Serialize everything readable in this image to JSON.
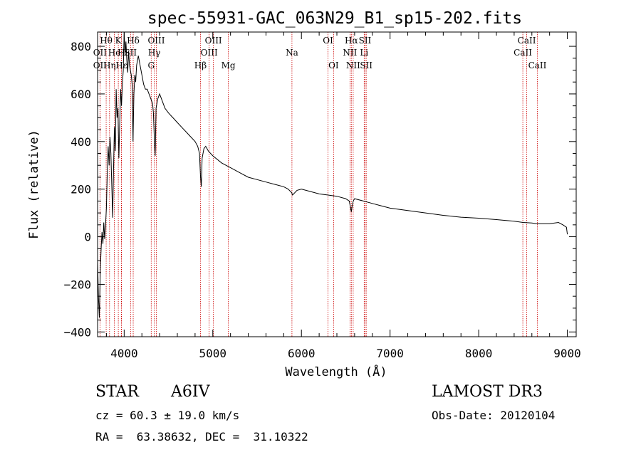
{
  "chart_data": {
    "type": "line",
    "title": "spec-55931-GAC_063N29_B1_sp15-202.fits",
    "xlabel": "Wavelength (Å)",
    "ylabel": "Flux (relative)",
    "xlim": [
      3700,
      9100
    ],
    "ylim": [
      -420,
      860
    ],
    "x_ticks": [
      4000,
      5000,
      6000,
      7000,
      8000,
      9000
    ],
    "y_ticks": [
      -400,
      -200,
      0,
      200,
      400,
      600,
      800
    ],
    "series": [
      {
        "name": "flux",
        "x": [
          3700,
          3710,
          3720,
          3730,
          3740,
          3750,
          3760,
          3770,
          3780,
          3790,
          3800,
          3810,
          3820,
          3830,
          3840,
          3850,
          3860,
          3870,
          3880,
          3890,
          3900,
          3910,
          3920,
          3930,
          3940,
          3950,
          3960,
          3970,
          3980,
          3990,
          4000,
          4010,
          4020,
          4030,
          4040,
          4050,
          4060,
          4070,
          4080,
          4090,
          4100,
          4110,
          4120,
          4130,
          4140,
          4160,
          4180,
          4200,
          4220,
          4240,
          4260,
          4280,
          4300,
          4320,
          4330,
          4340,
          4350,
          4360,
          4380,
          4400,
          4420,
          4440,
          4460,
          4500,
          4550,
          4600,
          4650,
          4700,
          4750,
          4800,
          4830,
          4850,
          4860,
          4870,
          4880,
          4900,
          4920,
          4950,
          5000,
          5100,
          5200,
          5300,
          5400,
          5500,
          5600,
          5700,
          5800,
          5850,
          5890,
          5900,
          5950,
          6000,
          6100,
          6200,
          6300,
          6400,
          6500,
          6540,
          6555,
          6563,
          6570,
          6585,
          6600,
          6700,
          6800,
          6900,
          7000,
          7200,
          7400,
          7600,
          7800,
          8000,
          8200,
          8400,
          8500,
          8600,
          8650,
          8700,
          8800,
          8900,
          8950,
          8990,
          9000
        ],
        "y": [
          -100,
          -250,
          -340,
          -150,
          -50,
          20,
          -30,
          60,
          -10,
          50,
          120,
          280,
          380,
          300,
          420,
          350,
          220,
          80,
          280,
          460,
          360,
          620,
          500,
          540,
          330,
          480,
          620,
          550,
          640,
          700,
          860,
          760,
          820,
          740,
          690,
          780,
          720,
          700,
          680,
          640,
          400,
          600,
          680,
          650,
          720,
          760,
          720,
          680,
          640,
          620,
          620,
          600,
          580,
          560,
          520,
          420,
          340,
          540,
          580,
          600,
          580,
          560,
          540,
          520,
          500,
          480,
          460,
          440,
          420,
          400,
          380,
          350,
          260,
          210,
          330,
          370,
          380,
          360,
          340,
          310,
          290,
          270,
          250,
          240,
          230,
          220,
          210,
          200,
          185,
          175,
          195,
          200,
          190,
          180,
          175,
          170,
          160,
          150,
          120,
          105,
          125,
          150,
          160,
          150,
          140,
          130,
          120,
          110,
          100,
          90,
          82,
          78,
          72,
          65,
          60,
          58,
          55,
          55,
          55,
          60,
          50,
          40,
          10
        ]
      }
    ],
    "line_markers": [
      {
        "label": "Hθ",
        "x": 3797,
        "row": 1
      },
      {
        "label": "OII",
        "x": 3727,
        "row": 2
      },
      {
        "label": "OII",
        "x": 3727,
        "row": 3
      },
      {
        "label": "Hη",
        "x": 3835,
        "row": 3
      },
      {
        "label": "He",
        "x": 3889,
        "row": 2
      },
      {
        "label": "K",
        "x": 3934,
        "row": 1
      },
      {
        "label": "H",
        "x": 3968,
        "row": 2
      },
      {
        "label": "Hε",
        "x": 3970,
        "row": 3
      },
      {
        "label": "Hδ",
        "x": 4102,
        "row": 1
      },
      {
        "label": "SII",
        "x": 4072,
        "row": 2
      },
      {
        "label": "OIII",
        "x": 4363,
        "row": 1
      },
      {
        "label": "Hγ",
        "x": 4340,
        "row": 2
      },
      {
        "label": "G",
        "x": 4305,
        "row": 3
      },
      {
        "label": "Hβ",
        "x": 4861,
        "row": 3
      },
      {
        "label": "OIII",
        "x": 5007,
        "row": 1
      },
      {
        "label": "OIII",
        "x": 4959,
        "row": 2
      },
      {
        "label": "Mg",
        "x": 5175,
        "row": 3
      },
      {
        "label": "Na",
        "x": 5893,
        "row": 2
      },
      {
        "label": "OI",
        "x": 6300,
        "row": 1
      },
      {
        "label": "OI",
        "x": 6363,
        "row": 3
      },
      {
        "label": "Hα",
        "x": 6563,
        "row": 1
      },
      {
        "label": "NII",
        "x": 6548,
        "row": 2
      },
      {
        "label": "NII",
        "x": 6584,
        "row": 3
      },
      {
        "label": "SII",
        "x": 6717,
        "row": 1
      },
      {
        "label": "Li",
        "x": 6708,
        "row": 2
      },
      {
        "label": "SII",
        "x": 6731,
        "row": 3
      },
      {
        "label": "CaII",
        "x": 8542,
        "row": 1
      },
      {
        "label": "CaII",
        "x": 8498,
        "row": 2
      },
      {
        "label": "CaII",
        "x": 8662,
        "row": 3
      }
    ]
  },
  "info": {
    "object_type": "STAR",
    "spectral_class": "A6IV",
    "survey": "LAMOST DR3",
    "redshift": "cz = 60.3 ± 19.0 km/s",
    "obs_date": "Obs-Date: 20120104",
    "coords": "RA =  63.38632, DEC =  31.10322"
  },
  "colors": {
    "line": "#000000",
    "marker": "#cc0000"
  }
}
